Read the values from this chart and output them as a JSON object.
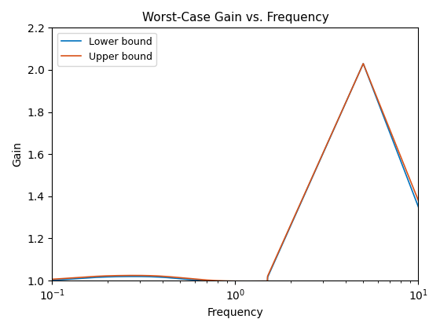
{
  "title": "Worst-Case Gain vs. Frequency",
  "xlabel": "Frequency",
  "ylabel": "Gain",
  "xlim": [
    0.1,
    10
  ],
  "ylim": [
    1.0,
    2.2
  ],
  "yticks": [
    1.0,
    1.2,
    1.4,
    1.6,
    1.8,
    2.0,
    2.2
  ],
  "lower_color": "#0072BD",
  "upper_color": "#D95319",
  "legend_labels": [
    "Lower bound",
    "Upper bound"
  ],
  "linewidth": 1.2,
  "background_color": "#ffffff"
}
